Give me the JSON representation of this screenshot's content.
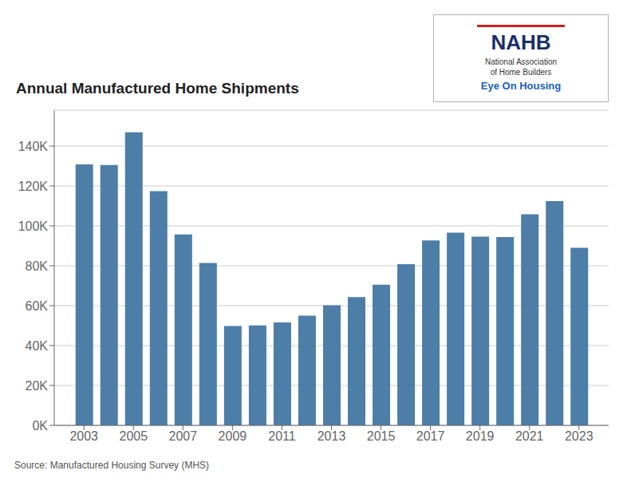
{
  "chart_data": {
    "type": "bar",
    "title": "Annual Manufactured Home Shipments",
    "x": [
      2003,
      2004,
      2005,
      2006,
      2007,
      2008,
      2009,
      2010,
      2011,
      2012,
      2013,
      2014,
      2015,
      2016,
      2017,
      2018,
      2019,
      2020,
      2021,
      2022,
      2023
    ],
    "values": [
      130800,
      130500,
      146900,
      117400,
      95700,
      81400,
      49800,
      50100,
      51600,
      55000,
      60200,
      64300,
      70500,
      80800,
      92700,
      96600,
      94600,
      94400,
      105800,
      112400,
      89000
    ],
    "color": "#4d7ea8",
    "xlim": [
      2001.8,
      2024.2
    ],
    "xticks": [
      2003,
      2005,
      2007,
      2009,
      2011,
      2013,
      2015,
      2017,
      2019,
      2021,
      2023
    ],
    "ylim": [
      0,
      158000
    ],
    "yticks": [
      {
        "value": 0,
        "label": "0K"
      },
      {
        "value": 20000,
        "label": "20K"
      },
      {
        "value": 40000,
        "label": "40K"
      },
      {
        "value": 60000,
        "label": "60K"
      },
      {
        "value": 80000,
        "label": "80K"
      },
      {
        "value": 100000,
        "label": "100K"
      },
      {
        "value": 120000,
        "label": "120K"
      },
      {
        "value": 140000,
        "label": "140K"
      }
    ],
    "grid": true,
    "annotations": [
      "Source: Manufactured Housing Survey (MHS)",
      "NAHB",
      "National Association\nof Home Builders",
      "Eye On Housing"
    ]
  }
}
